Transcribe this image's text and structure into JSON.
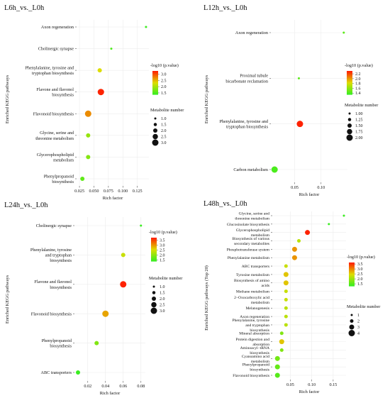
{
  "chart_data": [
    {
      "type": "scatter",
      "title": "L6h_vs._L0h",
      "xlabel": "Rich factor",
      "ylabel": "Enriched KEGG pathways",
      "x_ticks": [
        0.025,
        0.05,
        0.075,
        0.1,
        0.125
      ],
      "x_tick_labels": [
        "0.025",
        "0.050",
        "0.075",
        "0.100",
        "0.125"
      ],
      "xlim": [
        0.02,
        0.145
      ],
      "categories": [
        "Axon regeneration",
        "Cholinergic synapse",
        "Phenylalanine, tyrosine and tryptophan biosynthesis",
        "Flavone and flavonol biosynthesis",
        "Flavonoid biosynthesis",
        "Glycine, serine and threonine metabolism",
        "Glycerophospholipid metabolism",
        "Phenylpropanoid biosynthesis"
      ],
      "category_labels": [
        [
          "Axon regeneration"
        ],
        [
          "Cholinergic synapse"
        ],
        [
          "Phenylalanine, tyrosine and",
          "tryptophan biosynthesis"
        ],
        [
          "Flavone and flavonol",
          "biosynthesis"
        ],
        [
          "Flavonoid biosynthesis"
        ],
        [
          "Glycine, serine and",
          "threonine metabolism"
        ],
        [
          "Glycerophospholipid",
          "metabolism"
        ],
        [
          "Phenylpropanoid",
          "biosynthesis"
        ]
      ],
      "points": [
        {
          "category": "Axon regeneration",
          "x": 0.14,
          "neg_log10_p": 1.4,
          "count": 1
        },
        {
          "category": "Cholinergic synapse",
          "x": 0.08,
          "neg_log10_p": 1.5,
          "count": 1
        },
        {
          "category": "Phenylalanine, tyrosine and tryptophan biosynthesis",
          "x": 0.06,
          "neg_log10_p": 2.3,
          "count": 2
        },
        {
          "category": "Flavone and flavonol biosynthesis",
          "x": 0.062,
          "neg_log10_p": 3.2,
          "count": 3
        },
        {
          "category": "Flavonoid biosynthesis",
          "x": 0.04,
          "neg_log10_p": 2.7,
          "count": 3
        },
        {
          "category": "Glycine, serine and threonine metabolism",
          "x": 0.04,
          "neg_log10_p": 1.9,
          "count": 2
        },
        {
          "category": "Glycerophospholipid metabolism",
          "x": 0.04,
          "neg_log10_p": 1.8,
          "count": 2
        },
        {
          "category": "Phenylpropanoid biosynthesis",
          "x": 0.03,
          "neg_log10_p": 1.6,
          "count": 2
        }
      ],
      "color_legend": {
        "title": "-log10 (p.value)",
        "ticks": [
          1.5,
          2.0,
          2.5,
          3.0
        ],
        "tick_labels": [
          "1.5",
          "2.0",
          "2.5",
          "3.0"
        ],
        "range": [
          1.35,
          3.25
        ]
      },
      "size_legend": {
        "title": "Metabolite number",
        "values": [
          1.0,
          1.5,
          2.0,
          2.5,
          3.0
        ],
        "labels": [
          "1.0",
          "1.5",
          "2.0",
          "2.5",
          "3.0"
        ]
      },
      "grid": true
    },
    {
      "type": "scatter",
      "title": "L12h_vs._L0h",
      "xlabel": "Rich factor",
      "ylabel": "Enriched KEGG pathways",
      "x_ticks": [
        0.05,
        0.1
      ],
      "x_tick_labels": [
        "0.05",
        "0.10"
      ],
      "xlim": [
        0.005,
        0.15
      ],
      "categories": [
        "Axon regeneration",
        "Proximal tubule bicarbonate reclamation",
        "Phenylalanine, tyrosine and tryptophan biosynthesis",
        "Carbon metabolism"
      ],
      "category_labels": [
        [
          "Axon regeneration"
        ],
        [
          "Proximal tubule",
          "bicarbonate reclamation"
        ],
        [
          "Phenylalanine, tyrosine and",
          "tryptophan biosynthesis"
        ],
        [
          "Carbon metabolism"
        ]
      ],
      "points": [
        {
          "category": "Axon regeneration",
          "x": 0.143,
          "neg_log10_p": 1.45,
          "count": 1
        },
        {
          "category": "Proximal tubule bicarbonate reclamation",
          "x": 0.058,
          "neg_log10_p": 1.45,
          "count": 1
        },
        {
          "category": "Phenylalanine, tyrosine and tryptophan biosynthesis",
          "x": 0.06,
          "neg_log10_p": 2.3,
          "count": 2
        },
        {
          "category": "Carbon metabolism",
          "x": 0.012,
          "neg_log10_p": 1.4,
          "count": 2
        }
      ],
      "color_legend": {
        "title": "-log10 (p.value)",
        "ticks": [
          1.4,
          1.6,
          1.8,
          2.0,
          2.2
        ],
        "tick_labels": [
          "1.4",
          "1.6",
          "1.8",
          "2.0",
          "2.2"
        ],
        "range": [
          1.33,
          2.32
        ]
      },
      "size_legend": {
        "title": "Metabolite number",
        "values": [
          1.0,
          1.25,
          1.5,
          1.75,
          2.0
        ],
        "labels": [
          "1.00",
          "1.25",
          "1.50",
          "1.75",
          "2.00"
        ]
      },
      "grid": true
    },
    {
      "type": "scatter",
      "title": "L24h_vs._L0h",
      "xlabel": "Rich factor",
      "ylabel": "Enriched KEGG pathways",
      "x_ticks": [
        0.02,
        0.04,
        0.06,
        0.08
      ],
      "x_tick_labels": [
        "0.02",
        "0.04",
        "0.06",
        "0.08"
      ],
      "xlim": [
        0.005,
        0.085
      ],
      "categories": [
        "Cholinergic synapse",
        "Phenylalanine, tyrosine and tryptophan biosynthesis",
        "Flavone and flavonol biosynthesis",
        "Flavonoid biosynthesis",
        "Phenylpropanoid biosynthesis",
        "ABC transporters"
      ],
      "category_labels": [
        [
          "Cholinergic synapse"
        ],
        [
          "Phenylalanine, tyrosine",
          "and tryptophan",
          "biosynthesis"
        ],
        [
          "Flavone and flavonol",
          "biosynthesis"
        ],
        [
          "Flavonoid biosynthesis"
        ],
        [
          "Phenylpropanoid",
          "biosynthesis"
        ],
        [
          "ABC transporters"
        ]
      ],
      "points": [
        {
          "category": "Cholinergic synapse",
          "x": 0.08,
          "neg_log10_p": 1.4,
          "count": 1
        },
        {
          "category": "Phenylalanine, tyrosine and tryptophan biosynthesis",
          "x": 0.06,
          "neg_log10_p": 2.4,
          "count": 2
        },
        {
          "category": "Flavone and flavonol biosynthesis",
          "x": 0.06,
          "neg_log10_p": 3.7,
          "count": 3
        },
        {
          "category": "Flavonoid biosynthesis",
          "x": 0.04,
          "neg_log10_p": 2.9,
          "count": 3
        },
        {
          "category": "Phenylpropanoid biosynthesis",
          "x": 0.03,
          "neg_log10_p": 1.9,
          "count": 2
        },
        {
          "category": "ABC transporters",
          "x": 0.009,
          "neg_log10_p": 1.4,
          "count": 2
        }
      ],
      "color_legend": {
        "title": "-log10 (p.value)",
        "ticks": [
          1.5,
          2.0,
          2.5,
          3.0,
          3.5
        ],
        "tick_labels": [
          "1.5",
          "2.0",
          "2.5",
          "3.0",
          "3.5"
        ],
        "range": [
          1.35,
          3.75
        ]
      },
      "size_legend": {
        "title": "Metabolite number",
        "values": [
          1.0,
          1.5,
          2.0,
          2.5,
          3.0
        ],
        "labels": [
          "1.0",
          "1.5",
          "2.0",
          "2.5",
          "3.0"
        ]
      },
      "grid": true
    },
    {
      "type": "scatter",
      "title": "L48h_vs._L0h",
      "xlabel": "Rich factor",
      "ylabel": "Enriched KEGG pathways (Top 20)",
      "x_ticks": [
        0.05,
        0.1,
        0.15
      ],
      "x_tick_labels": [
        "0.05",
        "0.10",
        "0.15"
      ],
      "xlim": [
        0.008,
        0.18
      ],
      "categories": [
        "Glycine, serine and threonine metabolism",
        "Glucosinolate biosynthesis",
        "Glycerophospholipid metabolism",
        "Biosynthesis of various secondary metabolites",
        "Phosphotransferase system",
        "Phenylalanine metabolism",
        "ABC transporters",
        "Tyrosine metabolism",
        "Biosynthesis of amino acids",
        "Methane metabolism",
        "2-Oxocarboxylic acid metabolism",
        "Melanogenesis",
        "Axon regeneration",
        "Phenylalanine, tyrosine and tryptophan biosynthesis",
        "Mineral absorption",
        "Protein digestion and absorption",
        "Aminoacyl-tRNA biosynthesis",
        "Cyanoamino acid metabolism",
        "Phenylpropanoid biosynthesis",
        "Flavonoid biosynthesis"
      ],
      "category_labels": [
        [
          "Glycine, serine and",
          "threonine metabolism"
        ],
        [
          "Glucosinolate biosynthesis"
        ],
        [
          "Glycerophospholipid",
          "metabolism"
        ],
        [
          "Biosynthesis of various",
          "secondary metabolites"
        ],
        [
          "Phosphotransferase system"
        ],
        [
          "Phenylalanine metabolism"
        ],
        [
          "ABC transporters"
        ],
        [
          "Tyrosine metabolism"
        ],
        [
          "Biosynthesis of amino",
          "acids"
        ],
        [
          "Methane metabolism"
        ],
        [
          "2−Oxocarboxylic acid",
          "metabolism"
        ],
        [
          "Melanogenesis"
        ],
        [
          "Axon regeneration"
        ],
        [
          "Phenylalanine, tyrosine",
          "and tryptophan",
          "biosynthesis"
        ],
        [
          "Mineral absorption"
        ],
        [
          "Protein digestion and",
          "absorption"
        ],
        [
          "Aminoacyl−tRNA",
          "biosynthesis"
        ],
        [
          "Cyanoamino acid",
          "metabolism"
        ],
        [
          "Phenylpropanoid",
          "biosynthesis"
        ],
        [
          "Flavonoid biosynthesis"
        ]
      ],
      "points": [
        {
          "category": "Glycine, serine and threonine metabolism",
          "x": 0.175,
          "neg_log10_p": 1.3,
          "count": 1
        },
        {
          "category": "Glucosinolate biosynthesis",
          "x": 0.14,
          "neg_log10_p": 1.3,
          "count": 1
        },
        {
          "category": "Glycerophospholipid metabolism",
          "x": 0.09,
          "neg_log10_p": 3.6,
          "count": 3
        },
        {
          "category": "Biosynthesis of various secondary metabolites",
          "x": 0.07,
          "neg_log10_p": 2.2,
          "count": 2
        },
        {
          "category": "Phosphotransferase system",
          "x": 0.06,
          "neg_log10_p": 2.9,
          "count": 3
        },
        {
          "category": "Phenylalanine metabolism",
          "x": 0.06,
          "neg_log10_p": 2.9,
          "count": 3
        },
        {
          "category": "ABC transporters",
          "x": 0.04,
          "neg_log10_p": 2.3,
          "count": 2
        },
        {
          "category": "Tyrosine metabolism",
          "x": 0.04,
          "neg_log10_p": 2.6,
          "count": 3
        },
        {
          "category": "Biosynthesis of amino acids",
          "x": 0.04,
          "neg_log10_p": 2.6,
          "count": 3
        },
        {
          "category": "Methane metabolism",
          "x": 0.04,
          "neg_log10_p": 2.3,
          "count": 2
        },
        {
          "category": "2-Oxocarboxylic acid metabolism",
          "x": 0.04,
          "neg_log10_p": 2.3,
          "count": 2
        },
        {
          "category": "Melanogenesis",
          "x": 0.04,
          "neg_log10_p": 2.2,
          "count": 2
        },
        {
          "category": "Axon regeneration",
          "x": 0.04,
          "neg_log10_p": 2.2,
          "count": 2
        },
        {
          "category": "Phenylalanine, tyrosine and tryptophan biosynthesis",
          "x": 0.04,
          "neg_log10_p": 2.2,
          "count": 2
        },
        {
          "category": "Mineral absorption",
          "x": 0.03,
          "neg_log10_p": 1.8,
          "count": 2
        },
        {
          "category": "Protein digestion and absorption",
          "x": 0.03,
          "neg_log10_p": 2.6,
          "count": 3
        },
        {
          "category": "Aminoacyl-tRNA biosynthesis",
          "x": 0.03,
          "neg_log10_p": 1.8,
          "count": 2
        },
        {
          "category": "Cyanoamino acid metabolism",
          "x": 0.02,
          "neg_log10_p": 1.7,
          "count": 3
        },
        {
          "category": "Phenylpropanoid biosynthesis",
          "x": 0.02,
          "neg_log10_p": 1.6,
          "count": 3
        },
        {
          "category": "Flavonoid biosynthesis",
          "x": 0.02,
          "neg_log10_p": 1.5,
          "count": 3
        }
      ],
      "color_legend": {
        "title": "-log10 (p.value)",
        "ticks": [
          1.5,
          2.0,
          2.5,
          3.0,
          3.5
        ],
        "tick_labels": [
          "1.5",
          "2.0",
          "2.5",
          "3.0",
          "3.5"
        ],
        "range": [
          1.25,
          3.65
        ]
      },
      "size_legend": {
        "title": "Metabolite number",
        "values": [
          1,
          2,
          3,
          4
        ],
        "labels": [
          "1",
          "2",
          "3",
          "4"
        ]
      },
      "grid": true
    }
  ]
}
